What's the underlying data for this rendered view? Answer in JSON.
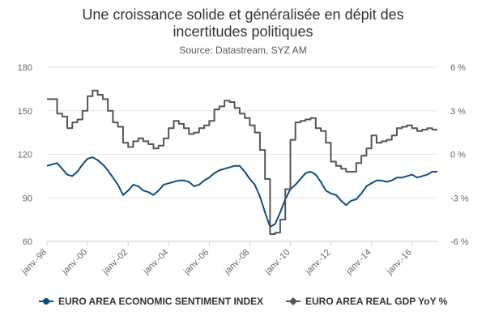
{
  "chart_data": {
    "type": "line",
    "title_line1": "Une croissance solide et généralisée en dépit des",
    "title_line2": "incertitudes politiques",
    "subtitle": "Source: Datastream, SYZ AM",
    "x_ticks": [
      "janv.-98",
      "janv.-00",
      "janv.-02",
      "janv.-04",
      "janv.-06",
      "janv.-08",
      "janv.-10",
      "janv.-12",
      "janv.-14",
      "janv.-16"
    ],
    "x_range": [
      "1998-01",
      "2017-04"
    ],
    "y_left": {
      "ticks": [
        60,
        90,
        120,
        150,
        180
      ],
      "range": [
        60,
        180
      ]
    },
    "y_right": {
      "ticks": [
        "-6 %",
        "-3 %",
        "0 %",
        "3 %",
        "6 %"
      ],
      "tick_values": [
        -6,
        -3,
        0,
        3,
        6
      ],
      "range": [
        -6,
        6
      ]
    },
    "grid": "horizontal",
    "legend_position": "bottom",
    "series": [
      {
        "name": "EURO AREA ECONOMIC SENTIMENT INDEX",
        "axis": "left",
        "color": "#0f4d84",
        "marker": "circle",
        "points": [
          [
            "1998-01",
            112
          ],
          [
            "1998-04",
            113
          ],
          [
            "1998-07",
            114
          ],
          [
            "1998-10",
            110
          ],
          [
            "1999-01",
            106
          ],
          [
            "1999-04",
            105
          ],
          [
            "1999-07",
            108
          ],
          [
            "1999-10",
            113
          ],
          [
            "2000-01",
            117
          ],
          [
            "2000-04",
            118
          ],
          [
            "2000-07",
            116
          ],
          [
            "2000-10",
            113
          ],
          [
            "2001-01",
            109
          ],
          [
            "2001-04",
            104
          ],
          [
            "2001-07",
            99
          ],
          [
            "2001-10",
            92
          ],
          [
            "2002-01",
            95
          ],
          [
            "2002-04",
            99
          ],
          [
            "2002-07",
            98
          ],
          [
            "2002-10",
            95
          ],
          [
            "2003-01",
            94
          ],
          [
            "2003-04",
            92
          ],
          [
            "2003-07",
            95
          ],
          [
            "2003-10",
            99
          ],
          [
            "2004-01",
            100
          ],
          [
            "2004-04",
            101
          ],
          [
            "2004-07",
            102
          ],
          [
            "2004-10",
            102
          ],
          [
            "2005-01",
            101
          ],
          [
            "2005-04",
            98
          ],
          [
            "2005-07",
            99
          ],
          [
            "2005-10",
            102
          ],
          [
            "2006-01",
            104
          ],
          [
            "2006-04",
            107
          ],
          [
            "2006-07",
            109
          ],
          [
            "2006-10",
            110
          ],
          [
            "2007-01",
            111
          ],
          [
            "2007-04",
            112
          ],
          [
            "2007-07",
            112
          ],
          [
            "2007-10",
            108
          ],
          [
            "2008-01",
            103
          ],
          [
            "2008-04",
            99
          ],
          [
            "2008-07",
            91
          ],
          [
            "2008-10",
            80
          ],
          [
            "2009-01",
            70
          ],
          [
            "2009-04",
            72
          ],
          [
            "2009-07",
            80
          ],
          [
            "2009-10",
            89
          ],
          [
            "2010-01",
            96
          ],
          [
            "2010-04",
            99
          ],
          [
            "2010-07",
            103
          ],
          [
            "2010-10",
            107
          ],
          [
            "2011-01",
            108
          ],
          [
            "2011-04",
            106
          ],
          [
            "2011-07",
            101
          ],
          [
            "2011-10",
            95
          ],
          [
            "2012-01",
            93
          ],
          [
            "2012-04",
            92
          ],
          [
            "2012-07",
            88
          ],
          [
            "2012-10",
            85
          ],
          [
            "2013-01",
            88
          ],
          [
            "2013-04",
            89
          ],
          [
            "2013-07",
            93
          ],
          [
            "2013-10",
            98
          ],
          [
            "2014-01",
            100
          ],
          [
            "2014-04",
            102
          ],
          [
            "2014-07",
            102
          ],
          [
            "2014-10",
            101
          ],
          [
            "2015-01",
            102
          ],
          [
            "2015-04",
            104
          ],
          [
            "2015-07",
            104
          ],
          [
            "2015-10",
            105
          ],
          [
            "2016-01",
            106
          ],
          [
            "2016-04",
            104
          ],
          [
            "2016-07",
            105
          ],
          [
            "2016-10",
            106
          ],
          [
            "2017-01",
            108
          ],
          [
            "2017-04",
            108
          ]
        ]
      },
      {
        "name": "EURO AREA REAL GDP YoY %",
        "axis": "right",
        "color": "#555555",
        "marker": "diamond",
        "step": true,
        "points": [
          [
            "1998-01",
            3.8
          ],
          [
            "1998-04",
            3.8
          ],
          [
            "1998-07",
            2.8
          ],
          [
            "1998-10",
            2.6
          ],
          [
            "1999-01",
            1.8
          ],
          [
            "1999-04",
            2.2
          ],
          [
            "1999-07",
            2.4
          ],
          [
            "1999-10",
            3.0
          ],
          [
            "2000-01",
            4.0
          ],
          [
            "2000-04",
            4.4
          ],
          [
            "2000-07",
            4.1
          ],
          [
            "2000-10",
            3.8
          ],
          [
            "2001-01",
            3.0
          ],
          [
            "2001-04",
            2.2
          ],
          [
            "2001-07",
            1.9
          ],
          [
            "2001-10",
            0.8
          ],
          [
            "2002-01",
            0.5
          ],
          [
            "2002-04",
            0.9
          ],
          [
            "2002-07",
            1.1
          ],
          [
            "2002-10",
            0.9
          ],
          [
            "2003-01",
            0.7
          ],
          [
            "2003-04",
            0.4
          ],
          [
            "2003-07",
            0.6
          ],
          [
            "2003-10",
            1.1
          ],
          [
            "2004-01",
            1.8
          ],
          [
            "2004-04",
            2.3
          ],
          [
            "2004-07",
            2.1
          ],
          [
            "2004-10",
            1.8
          ],
          [
            "2005-01",
            1.4
          ],
          [
            "2005-04",
            1.5
          ],
          [
            "2005-07",
            1.8
          ],
          [
            "2005-10",
            2.0
          ],
          [
            "2006-01",
            2.3
          ],
          [
            "2006-04",
            3.1
          ],
          [
            "2006-07",
            3.3
          ],
          [
            "2006-10",
            3.7
          ],
          [
            "2007-01",
            3.6
          ],
          [
            "2007-04",
            3.2
          ],
          [
            "2007-07",
            2.8
          ],
          [
            "2007-10",
            2.5
          ],
          [
            "2008-01",
            2.0
          ],
          [
            "2008-04",
            1.5
          ],
          [
            "2008-07",
            0.3
          ],
          [
            "2008-10",
            -1.7
          ],
          [
            "2009-01",
            -5.5
          ],
          [
            "2009-04",
            -5.4
          ],
          [
            "2009-07",
            -4.5
          ],
          [
            "2009-10",
            -2.4
          ],
          [
            "2010-01",
            1.0
          ],
          [
            "2010-04",
            2.2
          ],
          [
            "2010-07",
            2.3
          ],
          [
            "2010-10",
            2.4
          ],
          [
            "2011-01",
            2.5
          ],
          [
            "2011-04",
            1.8
          ],
          [
            "2011-07",
            1.6
          ],
          [
            "2011-10",
            0.8
          ],
          [
            "2012-01",
            -0.5
          ],
          [
            "2012-04",
            -0.8
          ],
          [
            "2012-07",
            -1.0
          ],
          [
            "2012-10",
            -1.2
          ],
          [
            "2013-01",
            -1.2
          ],
          [
            "2013-04",
            -0.6
          ],
          [
            "2013-07",
            -0.1
          ],
          [
            "2013-10",
            0.4
          ],
          [
            "2014-01",
            1.3
          ],
          [
            "2014-04",
            0.8
          ],
          [
            "2014-07",
            0.9
          ],
          [
            "2014-10",
            1.0
          ],
          [
            "2015-01",
            1.3
          ],
          [
            "2015-04",
            1.8
          ],
          [
            "2015-07",
            1.9
          ],
          [
            "2015-10",
            2.0
          ],
          [
            "2016-01",
            1.8
          ],
          [
            "2016-04",
            1.6
          ],
          [
            "2016-07",
            1.7
          ],
          [
            "2016-10",
            1.8
          ],
          [
            "2017-01",
            1.7
          ],
          [
            "2017-04",
            1.7
          ]
        ]
      }
    ]
  }
}
